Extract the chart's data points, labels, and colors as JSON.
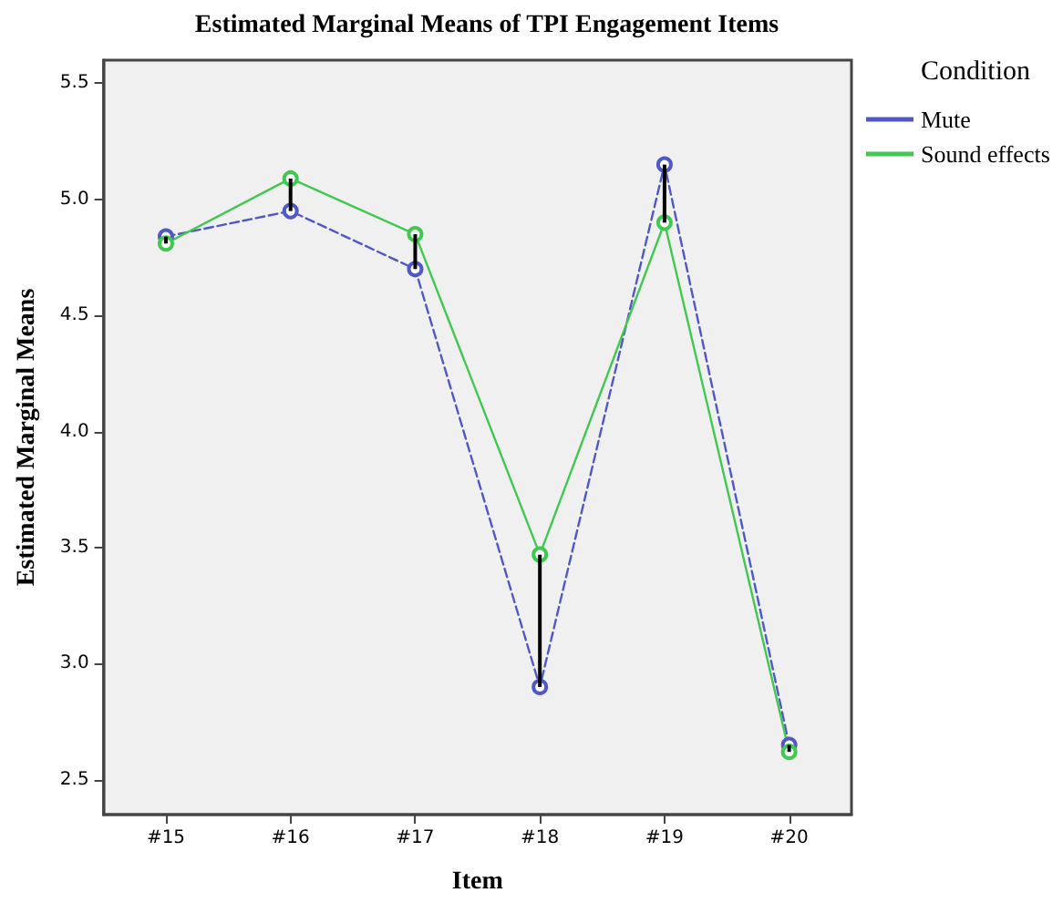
{
  "chart_data": {
    "type": "line",
    "title": "Estimated Marginal Means of TPI Engagement Items",
    "xlabel": "Item",
    "ylabel": "Estimated Marginal Means",
    "legend_title": "Condition",
    "categories": [
      "#15",
      "#16",
      "#17",
      "#18",
      "#19",
      "#20"
    ],
    "series": [
      {
        "name": "Mute",
        "color": "#5058c8",
        "values": [
          4.84,
          4.95,
          4.7,
          2.9,
          5.15,
          2.65
        ],
        "line_style": "dashed"
      },
      {
        "name": "Sound effects",
        "color": "#40c850",
        "values": [
          4.81,
          5.09,
          4.85,
          3.47,
          4.9,
          2.62
        ],
        "line_style": "solid",
        "errors": [
          [
            4.81,
            4.84
          ],
          [
            4.95,
            5.09
          ],
          [
            4.7,
            4.85
          ],
          [
            2.9,
            3.47
          ],
          [
            4.9,
            5.15
          ],
          [
            2.62,
            2.65
          ]
        ]
      }
    ],
    "ylim": [
      2.35,
      5.6
    ],
    "yticks": [
      2.5,
      {
        "value": 3,
        "label": "3.0"
      },
      3.5,
      {
        "value": 4,
        "label": "4.0"
      },
      4.5,
      {
        "value": 5,
        "label": "5.0"
      },
      5.5
    ],
    "grid": false,
    "legend": "top right",
    "marker": "circle"
  }
}
